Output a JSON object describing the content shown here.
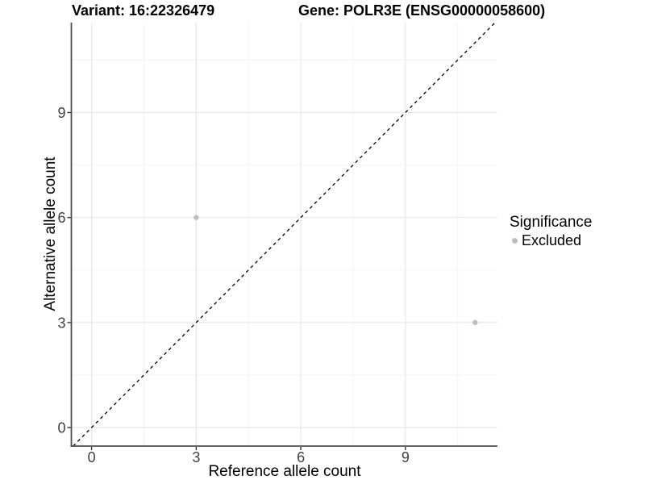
{
  "chart_data": {
    "type": "scatter",
    "titles": {
      "left": "Variant: 16:22326479",
      "right": "Gene: POLR3E (ENSG00000058600)"
    },
    "xlabel": "Reference allele count",
    "ylabel": "Alternative allele count",
    "xticks": [
      0,
      3,
      6,
      9
    ],
    "yticks": [
      0,
      3,
      6,
      9
    ],
    "xminor": [
      1.5,
      4.5,
      7.5,
      10.5
    ],
    "yminor": [
      1.5,
      4.5,
      7.5,
      10.5
    ],
    "xlim": [
      -0.58,
      11.64
    ],
    "ylim": [
      -0.53,
      11.57
    ],
    "grid": "on",
    "reference_line": {
      "slope": 1,
      "intercept": 0,
      "style": "dashed",
      "color": "#000000"
    },
    "series": [
      {
        "name": "Excluded",
        "color": "#bebebe",
        "points": [
          {
            "x": 3,
            "y": 6
          },
          {
            "x": 11,
            "y": 3
          }
        ]
      }
    ],
    "legend": {
      "title": "Significance",
      "position": "right",
      "items": [
        {
          "label": "Excluded",
          "color": "#bebebe"
        }
      ]
    }
  },
  "colors": {
    "background": "#ffffff",
    "axis_line": "#4d4d4d",
    "tick_mark": "#333333",
    "tick_label": "#404040",
    "grid_major": "#e7e7e7",
    "grid_minor": "#f3f3f3"
  }
}
